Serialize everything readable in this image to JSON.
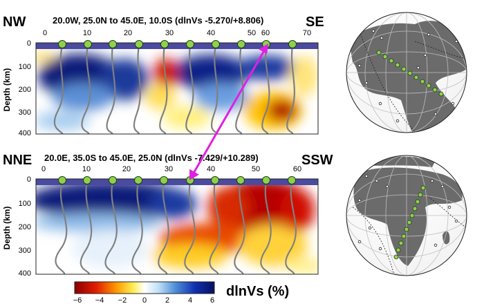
{
  "panel_top": {
    "left_label": "NW",
    "right_label": "SE",
    "title": "20.0W, 25.0N to 45.0E, 10.0S (dlnVs -5.270/+8.806)",
    "x_ticks": [
      "0",
      "10",
      "20",
      "30",
      "40",
      "50",
      "60",
      "70"
    ],
    "y_label": "Depth (km)",
    "y_ticks": [
      "0",
      "100",
      "200",
      "300",
      "400"
    ]
  },
  "panel_bottom": {
    "left_label": "NNE",
    "right_label": "SSW",
    "title": "20.0E, 35.0S to 45.0E, 25.0N (dlnVs -7.429/+10.289)",
    "x_ticks": [
      "0",
      "10",
      "20",
      "30",
      "40",
      "50",
      "60"
    ],
    "y_label": "Depth (km)",
    "y_ticks": [
      "0",
      "100",
      "200",
      "300",
      "400"
    ]
  },
  "colorbar": {
    "label": "dlnVs (%)",
    "ticks": [
      "−6",
      "−4",
      "−2",
      "0",
      "2",
      "4",
      "6"
    ]
  },
  "colors": {
    "slow": "#b30000",
    "fast": "#0a1a7a",
    "neutral": "#ffffff",
    "station_marker": "#8fd14f",
    "surface_band": "#4a4aa0",
    "connector": "#e020e0",
    "land": "#6b6b6b"
  }
}
